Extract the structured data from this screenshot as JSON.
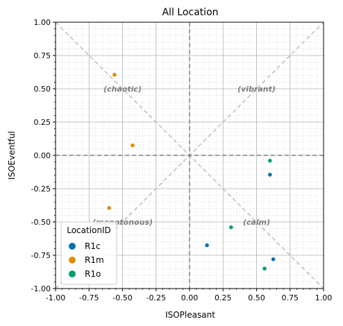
{
  "chart_data": {
    "type": "scatter",
    "title": "All Location",
    "xlabel": "ISOPleasant",
    "ylabel": "ISOEventful",
    "xlim": [
      -1.0,
      1.0
    ],
    "ylim": [
      -1.0,
      1.0
    ],
    "xticks": [
      "-1.00",
      "-0.75",
      "-0.50",
      "-0.25",
      "0.00",
      "0.25",
      "0.50",
      "0.75",
      "1.00"
    ],
    "yticks": [
      "1.00",
      "0.75",
      "0.50",
      "0.25",
      "0.00",
      "-0.25",
      "-0.50",
      "-0.75",
      "-1.00"
    ],
    "grid": true,
    "quadrant_labels": [
      {
        "text": "(chaotic)",
        "x": -0.5,
        "y": 0.5
      },
      {
        "text": "(vibrant)",
        "x": 0.5,
        "y": 0.5
      },
      {
        "text": "(monotonous)",
        "x": -0.5,
        "y": -0.5
      },
      {
        "text": "(calm)",
        "x": 0.5,
        "y": -0.5
      }
    ],
    "legend": {
      "title": "LocationID",
      "placement": "lower-left"
    },
    "series": [
      {
        "name": "R1c",
        "color": "#0072b2",
        "points": [
          [
            0.6,
            -0.145
          ],
          [
            0.13,
            -0.675
          ],
          [
            0.625,
            -0.78
          ]
        ]
      },
      {
        "name": "R1m",
        "color": "#de8f05",
        "points": [
          [
            -0.56,
            0.605
          ],
          [
            -0.425,
            0.075
          ],
          [
            -0.6,
            -0.395
          ]
        ]
      },
      {
        "name": "R1o",
        "color": "#029e73",
        "points": [
          [
            0.6,
            -0.04
          ],
          [
            0.31,
            -0.54
          ],
          [
            0.56,
            -0.85
          ]
        ]
      }
    ]
  }
}
